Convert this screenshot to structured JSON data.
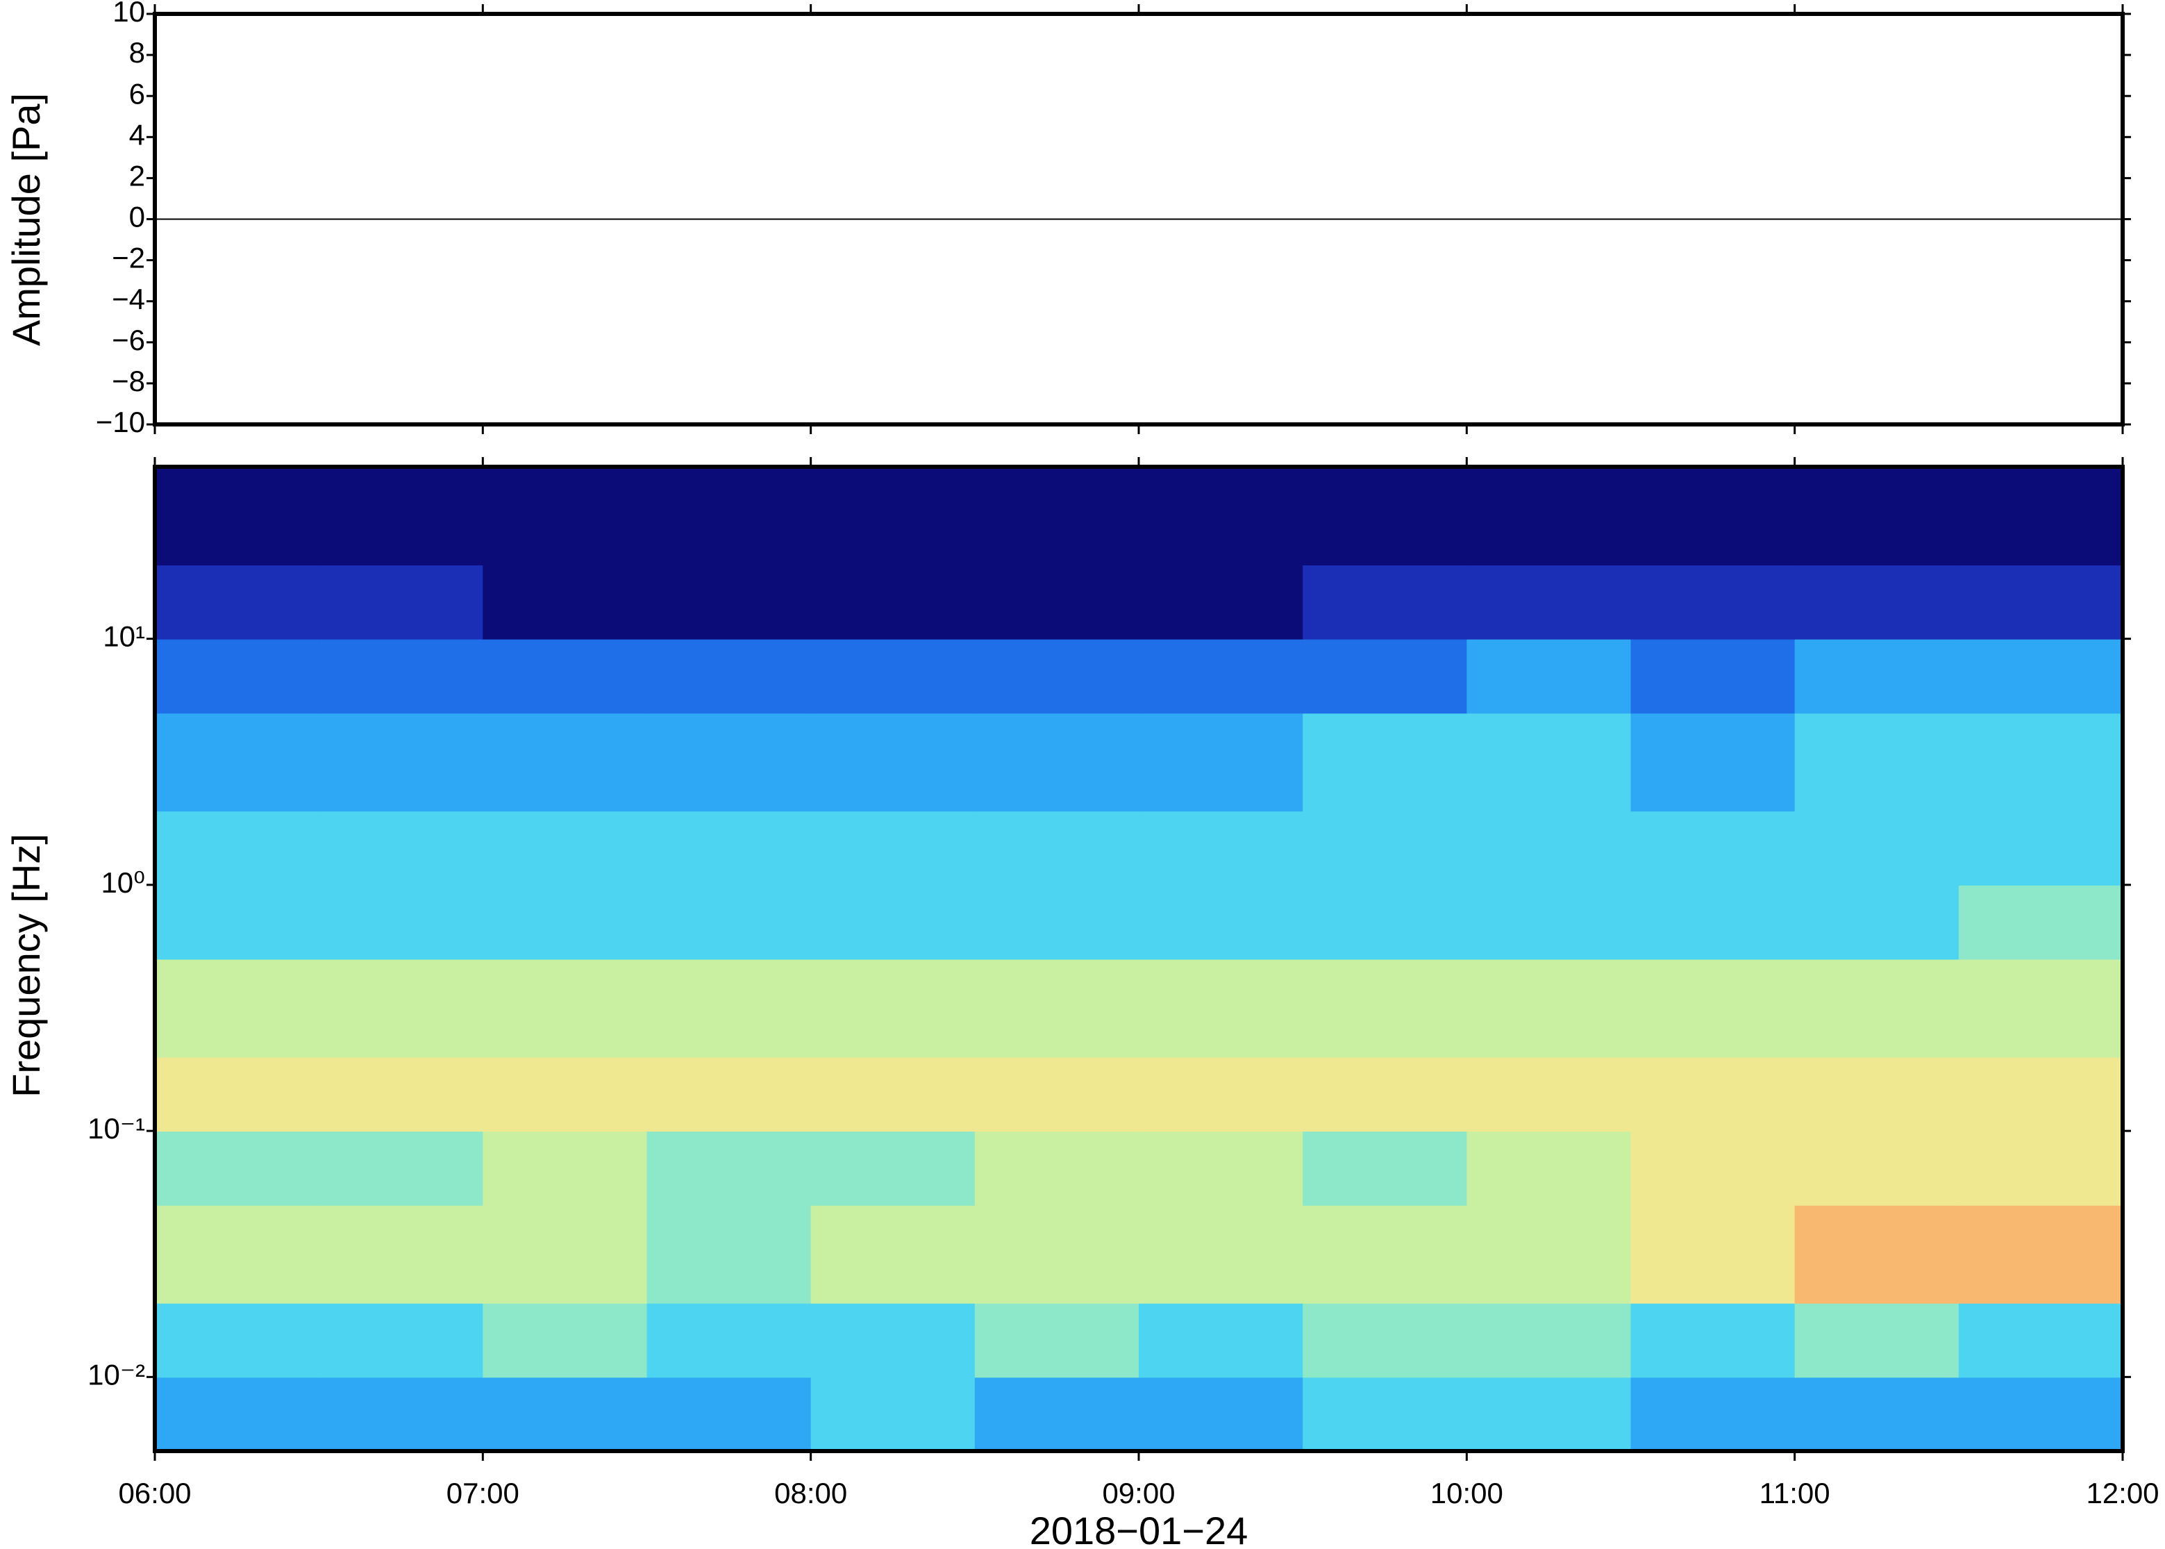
{
  "chart_data": [
    {
      "type": "line",
      "ylabel": "Amplitude [Pa]",
      "x": [
        "06:00",
        "06:30",
        "07:00",
        "07:30",
        "08:00",
        "08:30",
        "09:00",
        "09:30",
        "10:00",
        "10:30",
        "11:00",
        "11:30",
        "12:00"
      ],
      "series": [
        {
          "color": "#000000",
          "values": [
            0,
            0,
            0,
            0,
            0,
            0,
            0,
            0,
            0,
            0,
            0,
            0,
            0
          ]
        }
      ],
      "xlim": [
        "06:00",
        "12:00"
      ],
      "ylim": [
        -10,
        10
      ],
      "yticks": [
        {
          "value": -10,
          "label": "−10"
        },
        {
          "value": -8,
          "label": "−8"
        },
        {
          "value": -6,
          "label": "−6"
        },
        {
          "value": -4,
          "label": "−4"
        },
        {
          "value": -2,
          "label": "−2"
        },
        0,
        2,
        4,
        6,
        8,
        10
      ]
    },
    {
      "type": "heatmap",
      "ylabel": "Frequency [Hz]",
      "xlabel": "2018−01−24",
      "log_y": true,
      "xlim": [
        "06:00",
        "12:00"
      ],
      "xticks": [
        "06:00",
        "07:00",
        "08:00",
        "09:00",
        "10:00",
        "11:00",
        "12:00"
      ],
      "ylim": [
        0.005,
        50
      ],
      "yticks": [
        {
          "value": 0.01,
          "label": "10⁻²"
        },
        {
          "value": 0.1,
          "label": "10⁻¹"
        },
        {
          "value": 1,
          "label": "10⁰"
        },
        {
          "value": 10,
          "label": "10¹"
        }
      ],
      "x": [
        "06:00",
        "06:30",
        "07:00",
        "07:30",
        "08:00",
        "08:30",
        "09:00",
        "09:30",
        "10:00",
        "10:30",
        "11:00",
        "11:30",
        "12:00"
      ],
      "y": [
        0.005,
        0.01,
        0.02,
        0.05,
        0.1,
        0.2,
        0.5,
        1,
        2,
        5,
        10,
        20,
        50
      ],
      "colormap": [
        "#0c0c78",
        "#1a2fb5",
        "#1f6fe8",
        "#2ea8f5",
        "#4dd4f0",
        "#8ce8c8",
        "#c8f0a0",
        "#f0e890",
        "#f8b870"
      ],
      "values": [
        [
          3,
          3,
          3,
          3,
          4,
          3,
          3,
          4,
          4,
          3,
          3,
          3
        ],
        [
          4,
          4,
          5,
          4,
          4,
          5,
          4,
          5,
          5,
          4,
          5,
          4
        ],
        [
          6,
          6,
          6,
          5,
          6,
          6,
          6,
          6,
          6,
          7,
          8,
          8
        ],
        [
          5,
          5,
          6,
          5,
          5,
          6,
          6,
          5,
          6,
          7,
          7,
          7
        ],
        [
          7,
          7,
          7,
          7,
          7,
          7,
          7,
          7,
          7,
          7,
          7,
          7
        ],
        [
          6,
          6,
          6,
          6,
          6,
          6,
          6,
          6,
          6,
          6,
          6,
          6
        ],
        [
          4,
          4,
          4,
          4,
          4,
          4,
          4,
          4,
          4,
          4,
          4,
          5
        ],
        [
          4,
          4,
          4,
          4,
          4,
          4,
          4,
          4,
          4,
          4,
          4,
          4
        ],
        [
          3,
          3,
          3,
          3,
          3,
          3,
          3,
          4,
          4,
          3,
          4,
          4
        ],
        [
          2,
          2,
          2,
          2,
          2,
          2,
          2,
          2,
          3,
          2,
          3,
          3
        ],
        [
          1,
          1,
          0,
          0,
          0,
          0,
          0,
          1,
          1,
          1,
          1,
          1
        ],
        [
          0,
          0,
          0,
          0,
          0,
          0,
          0,
          0,
          0,
          0,
          0,
          0
        ]
      ]
    }
  ]
}
